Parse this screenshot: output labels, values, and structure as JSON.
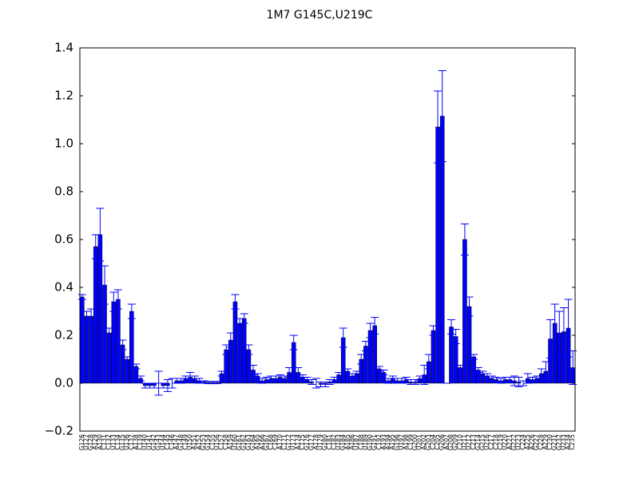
{
  "chart_data": {
    "type": "bar",
    "title": "1M7  G145C,U219C",
    "categories": [
      "G126",
      "U127",
      "G128",
      "A129",
      "A130",
      "C131",
      "C132",
      "U133",
      "C134",
      "G135",
      "U136",
      "C137",
      "A138",
      "C139",
      "U140",
      "U141",
      "G142",
      "G143",
      "U144",
      "C145",
      "C146",
      "A147",
      "G148",
      "C149",
      "U150",
      "A151",
      "A152",
      "G153",
      "G154",
      "C155",
      "U156",
      "C157",
      "C158",
      "A159",
      "U160",
      "G161",
      "G162",
      "G163",
      "G164",
      "A165",
      "A166",
      "G167",
      "C168",
      "C169",
      "A170",
      "C171",
      "G172",
      "U173",
      "A174",
      "C175",
      "G176",
      "G177",
      "A178",
      "U179",
      "G180",
      "C181",
      "C182",
      "U183",
      "G184",
      "A185",
      "A186",
      "U187",
      "C188",
      "U189",
      "G190",
      "G191",
      "C192",
      "A193",
      "A194",
      "A195",
      "G196",
      "U197",
      "A198",
      "C199",
      "G200",
      "U201",
      "A202",
      "G203",
      "C204",
      "C205",
      "G206",
      "A207",
      "G208",
      "G209",
      "C210",
      "U211",
      "U212",
      "C213",
      "G214",
      "G215",
      "U216",
      "C217",
      "C218",
      "C219",
      "U220",
      "A221",
      "G222",
      "U223",
      "C224",
      "A225",
      "A226",
      "G227",
      "C228",
      "A229",
      "C230",
      "G231",
      "G232",
      "U233",
      "A234",
      "C235"
    ],
    "values": [
      0.36,
      0.28,
      0.28,
      0.57,
      0.62,
      0.41,
      0.21,
      0.34,
      0.35,
      0.16,
      0.1,
      0.3,
      0.07,
      0.02,
      -0.01,
      -0.01,
      -0.01,
      0.0,
      -0.01,
      -0.01,
      0.0,
      0.01,
      0.01,
      0.02,
      0.025,
      0.02,
      0.01,
      0.005,
      0.003,
      0.003,
      0.003,
      0.04,
      0.14,
      0.18,
      0.34,
      0.25,
      0.27,
      0.14,
      0.055,
      0.03,
      0.01,
      0.015,
      0.02,
      0.02,
      0.025,
      0.02,
      0.045,
      0.17,
      0.045,
      0.025,
      0.015,
      0.005,
      0.0,
      -0.005,
      -0.005,
      0.005,
      0.015,
      0.035,
      0.19,
      0.05,
      0.03,
      0.04,
      0.1,
      0.155,
      0.22,
      0.24,
      0.06,
      0.045,
      0.01,
      0.02,
      0.01,
      0.01,
      0.015,
      0.005,
      0.005,
      0.02,
      0.035,
      0.09,
      0.22,
      1.07,
      1.115,
      0.0,
      0.235,
      0.195,
      0.065,
      0.6,
      0.32,
      0.11,
      0.055,
      0.04,
      0.03,
      0.02,
      0.015,
      0.01,
      0.015,
      0.015,
      0.01,
      0.005,
      0.0,
      0.02,
      0.015,
      0.02,
      0.04,
      0.05,
      0.185,
      0.25,
      0.21,
      0.215,
      0.23,
      0.065
    ],
    "errors": [
      0.01,
      0.02,
      0.03,
      0.05,
      0.11,
      0.08,
      0.02,
      0.04,
      0.04,
      0.02,
      0.01,
      0.03,
      0.01,
      0.01,
      0.01,
      0.01,
      0.01,
      0.05,
      0.01,
      0.025,
      0.02,
      0.01,
      0.01,
      0.01,
      0.02,
      0.01,
      0.01,
      0.005,
      0.005,
      0.005,
      0.005,
      0.01,
      0.02,
      0.03,
      0.03,
      0.02,
      0.02,
      0.02,
      0.02,
      0.01,
      0.01,
      0.01,
      0.01,
      0.01,
      0.01,
      0.01,
      0.02,
      0.03,
      0.02,
      0.01,
      0.01,
      0.01,
      0.02,
      0.01,
      0.01,
      0.01,
      0.01,
      0.01,
      0.04,
      0.01,
      0.01,
      0.01,
      0.02,
      0.02,
      0.03,
      0.035,
      0.01,
      0.01,
      0.01,
      0.01,
      0.01,
      0.01,
      0.01,
      0.01,
      0.01,
      0.01,
      0.04,
      0.03,
      0.02,
      0.15,
      0.19,
      0.0,
      0.03,
      0.03,
      0.01,
      0.065,
      0.04,
      0.01,
      0.01,
      0.01,
      0.01,
      0.01,
      0.01,
      0.01,
      0.01,
      0.01,
      0.02,
      0.02,
      0.01,
      0.02,
      0.01,
      0.01,
      0.02,
      0.04,
      0.08,
      0.08,
      0.09,
      0.1,
      0.12,
      0.07
    ],
    "color": "#0000ff",
    "ylim": [
      -0.2,
      1.4
    ],
    "yticks": [
      {
        "value": -0.2,
        "label": "−0.2"
      },
      {
        "value": 0,
        "label": "0.0"
      },
      {
        "value": 0.2,
        "label": "0.2"
      },
      {
        "value": 0.4,
        "label": "0.4"
      },
      {
        "value": 0.6,
        "label": "0.6"
      },
      {
        "value": 0.8,
        "label": "0.8"
      },
      {
        "value": 1,
        "label": "1.0"
      },
      {
        "value": 1.2,
        "label": "1.2"
      },
      {
        "value": 1.4,
        "label": "1.4"
      }
    ],
    "grid": false
  }
}
